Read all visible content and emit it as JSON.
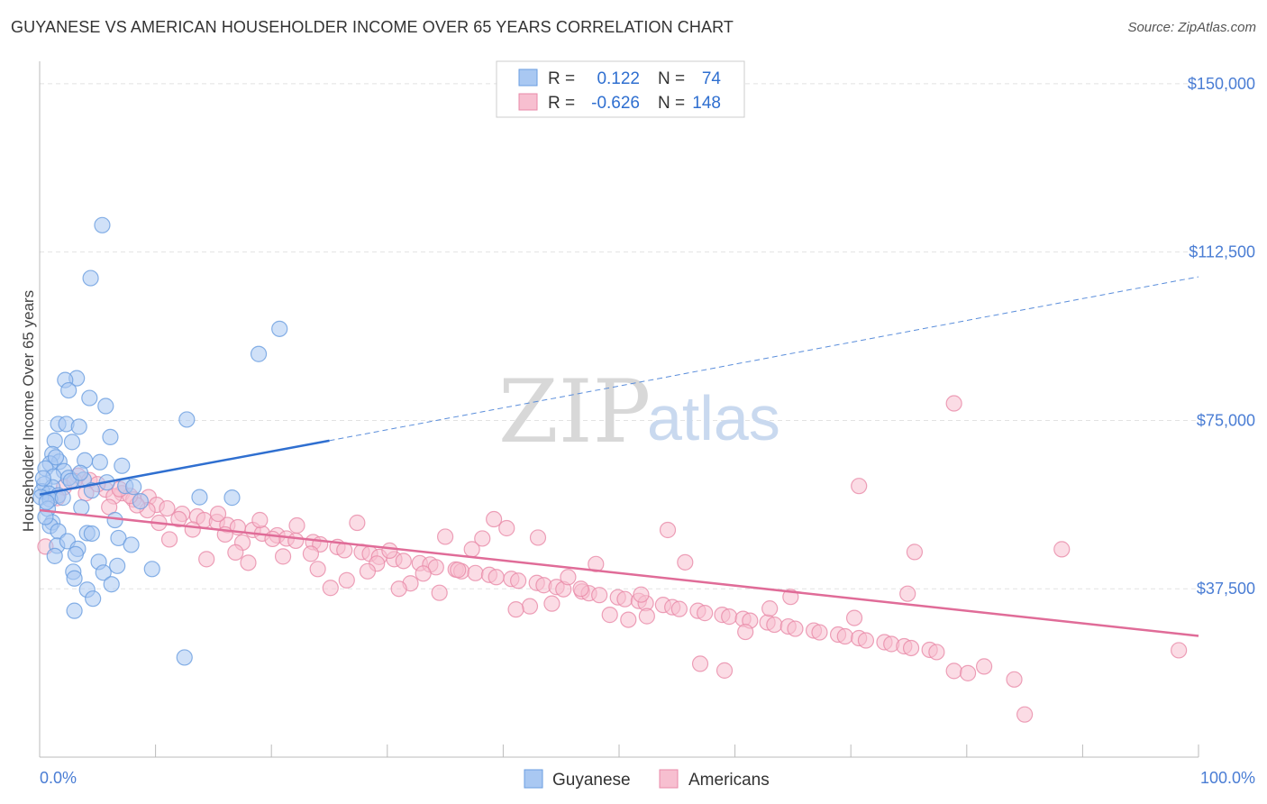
{
  "header": {
    "title": "GUYANESE VS AMERICAN HOUSEHOLDER INCOME OVER 65 YEARS CORRELATION CHART",
    "source": "Source: ZipAtlas.com"
  },
  "watermark": {
    "zip": "ZIP",
    "atlas": "atlas"
  },
  "legend": {
    "rows": [
      {
        "r_label": "R =",
        "r_value": "0.122",
        "n_label": "N =",
        "n_value": "74",
        "color": "#a9c8f2",
        "border": "#6a9ee0"
      },
      {
        "r_label": "R =",
        "r_value": "-0.626",
        "n_label": "N =",
        "n_value": "148",
        "color": "#f7bfd0",
        "border": "#e88aa8"
      }
    ]
  },
  "bottom_legend": [
    {
      "label": "Guyanese",
      "color": "#a9c8f2",
      "border": "#6a9ee0"
    },
    {
      "label": "Americans",
      "color": "#f7bfd0",
      "border": "#e88aa8"
    }
  ],
  "chart_data": {
    "type": "scatter",
    "title": "GUYANESE VS AMERICAN HOUSEHOLDER INCOME OVER 65 YEARS CORRELATION CHART",
    "xlabel": "",
    "ylabel": "Householder Income Over 65 years",
    "xlim": [
      0,
      100
    ],
    "ylim": [
      0,
      155000
    ],
    "x_tick_labels": [
      "0.0%",
      "100.0%"
    ],
    "y_ticks": [
      37500,
      75000,
      112500,
      150000
    ],
    "y_tick_labels": [
      "$37,500",
      "$75,000",
      "$112,500",
      "$150,000"
    ],
    "grid": true,
    "legend_position": "top-center",
    "series": [
      {
        "name": "Guyanese",
        "color": "#6a9ee0",
        "fill": "#a9c8f2",
        "trend": {
          "x": [
            0,
            25
          ],
          "y": [
            58500,
            70500
          ],
          "extended_x": [
            25,
            100
          ],
          "extended_y": [
            70500,
            107000
          ]
        },
        "points": [
          [
            5.4,
            118500
          ],
          [
            4.4,
            106700
          ],
          [
            20.7,
            95400
          ],
          [
            18.9,
            89800
          ],
          [
            3.2,
            84400
          ],
          [
            2.2,
            84000
          ],
          [
            2.5,
            81700
          ],
          [
            4.3,
            80000
          ],
          [
            5.7,
            78200
          ],
          [
            1.6,
            74200
          ],
          [
            2.3,
            74200
          ],
          [
            3.4,
            73600
          ],
          [
            12.7,
            75200
          ],
          [
            6.1,
            71300
          ],
          [
            2.8,
            70200
          ],
          [
            1.3,
            70500
          ],
          [
            1.1,
            67500
          ],
          [
            3.9,
            66100
          ],
          [
            5.2,
            65700
          ],
          [
            1.7,
            65800
          ],
          [
            0.9,
            65400
          ],
          [
            0.5,
            64300
          ],
          [
            2.1,
            63700
          ],
          [
            7.1,
            64900
          ],
          [
            1.2,
            62500
          ],
          [
            2.5,
            62200
          ],
          [
            3.8,
            61800
          ],
          [
            5.8,
            61200
          ],
          [
            7.4,
            60400
          ],
          [
            8.1,
            60200
          ],
          [
            0.4,
            60800
          ],
          [
            1.1,
            60100
          ],
          [
            0.2,
            59200
          ],
          [
            0.8,
            58700
          ],
          [
            1.6,
            58300
          ],
          [
            0.1,
            57900
          ],
          [
            0.9,
            57400
          ],
          [
            4.5,
            59400
          ],
          [
            13.8,
            57900
          ],
          [
            16.6,
            57800
          ],
          [
            0.7,
            55300
          ],
          [
            3.6,
            55600
          ],
          [
            1.1,
            52300
          ],
          [
            0.9,
            51500
          ],
          [
            1.6,
            50300
          ],
          [
            4.1,
            49900
          ],
          [
            4.5,
            49800
          ],
          [
            6.8,
            48800
          ],
          [
            7.9,
            47300
          ],
          [
            1.5,
            47100
          ],
          [
            2.4,
            48100
          ],
          [
            3.3,
            46400
          ],
          [
            1.3,
            44800
          ],
          [
            3.1,
            45200
          ],
          [
            5.1,
            43500
          ],
          [
            6.7,
            42600
          ],
          [
            9.7,
            41900
          ],
          [
            2.9,
            41300
          ],
          [
            5.5,
            41100
          ],
          [
            6.2,
            38500
          ],
          [
            3.0,
            39800
          ],
          [
            4.1,
            37300
          ],
          [
            4.6,
            35300
          ],
          [
            3.0,
            32600
          ],
          [
            12.5,
            22200
          ],
          [
            0.5,
            53500
          ],
          [
            2.0,
            57800
          ],
          [
            0.3,
            62100
          ],
          [
            1.4,
            66800
          ],
          [
            2.7,
            61500
          ],
          [
            3.5,
            63300
          ],
          [
            0.6,
            56800
          ],
          [
            6.5,
            52800
          ],
          [
            8.7,
            57000
          ]
        ]
      },
      {
        "name": "Americans",
        "color": "#e88aa8",
        "fill": "#f7bfd0",
        "trend": {
          "x": [
            0,
            100
          ],
          "y": [
            55000,
            27000
          ]
        },
        "points": [
          [
            78.9,
            78800
          ],
          [
            70.7,
            60400
          ],
          [
            3.3,
            62700
          ],
          [
            4.3,
            61700
          ],
          [
            2.1,
            60100
          ],
          [
            5.7,
            59600
          ],
          [
            7.1,
            58800
          ],
          [
            8.1,
            57400
          ],
          [
            6.4,
            58100
          ],
          [
            9.4,
            57900
          ],
          [
            10.1,
            56200
          ],
          [
            11.0,
            55400
          ],
          [
            12.3,
            54200
          ],
          [
            13.6,
            53600
          ],
          [
            14.2,
            52800
          ],
          [
            15.3,
            52400
          ],
          [
            16.2,
            51700
          ],
          [
            17.1,
            51200
          ],
          [
            18.4,
            50600
          ],
          [
            19.2,
            49800
          ],
          [
            20.5,
            49400
          ],
          [
            21.3,
            48700
          ],
          [
            22.1,
            48200
          ],
          [
            23.6,
            47900
          ],
          [
            24.2,
            47400
          ],
          [
            25.7,
            46800
          ],
          [
            26.3,
            46100
          ],
          [
            27.8,
            45700
          ],
          [
            28.5,
            45300
          ],
          [
            29.3,
            44600
          ],
          [
            30.6,
            44100
          ],
          [
            31.4,
            43700
          ],
          [
            32.8,
            43200
          ],
          [
            33.7,
            42900
          ],
          [
            34.2,
            42300
          ],
          [
            35.9,
            41800
          ],
          [
            36.4,
            41400
          ],
          [
            37.6,
            41000
          ],
          [
            38.8,
            40600
          ],
          [
            39.4,
            40100
          ],
          [
            40.7,
            39700
          ],
          [
            41.3,
            39300
          ],
          [
            42.9,
            38800
          ],
          [
            43.5,
            38300
          ],
          [
            44.6,
            37900
          ],
          [
            45.2,
            37400
          ],
          [
            46.8,
            36900
          ],
          [
            47.4,
            36500
          ],
          [
            48.3,
            36100
          ],
          [
            49.9,
            35600
          ],
          [
            50.5,
            35200
          ],
          [
            51.7,
            34800
          ],
          [
            52.3,
            34300
          ],
          [
            53.8,
            33900
          ],
          [
            54.6,
            33400
          ],
          [
            55.2,
            33000
          ],
          [
            56.8,
            32600
          ],
          [
            57.4,
            32100
          ],
          [
            58.9,
            31700
          ],
          [
            59.5,
            31300
          ],
          [
            60.7,
            30800
          ],
          [
            61.3,
            30400
          ],
          [
            62.8,
            30000
          ],
          [
            63.4,
            29500
          ],
          [
            64.6,
            29100
          ],
          [
            65.2,
            28600
          ],
          [
            66.8,
            28200
          ],
          [
            67.3,
            27800
          ],
          [
            68.9,
            27300
          ],
          [
            69.5,
            26900
          ],
          [
            70.7,
            26500
          ],
          [
            71.3,
            26000
          ],
          [
            72.9,
            25600
          ],
          [
            73.5,
            25200
          ],
          [
            74.6,
            24700
          ],
          [
            75.2,
            24300
          ],
          [
            76.8,
            23900
          ],
          [
            77.4,
            23400
          ],
          [
            78.9,
            19200
          ],
          [
            80.1,
            18700
          ],
          [
            81.5,
            20200
          ],
          [
            84.1,
            17300
          ],
          [
            85.0,
            9500
          ],
          [
            98.3,
            23800
          ],
          [
            88.2,
            46300
          ],
          [
            74.9,
            36400
          ],
          [
            75.5,
            45700
          ],
          [
            70.3,
            31000
          ],
          [
            64.8,
            35700
          ],
          [
            63.0,
            33100
          ],
          [
            60.9,
            27900
          ],
          [
            59.1,
            19300
          ],
          [
            57.0,
            20800
          ],
          [
            55.7,
            43400
          ],
          [
            54.2,
            50600
          ],
          [
            52.4,
            31400
          ],
          [
            51.9,
            36200
          ],
          [
            50.8,
            30600
          ],
          [
            49.2,
            31700
          ],
          [
            48.0,
            43000
          ],
          [
            46.7,
            37500
          ],
          [
            45.6,
            40100
          ],
          [
            44.2,
            34200
          ],
          [
            43.0,
            48900
          ],
          [
            42.3,
            33600
          ],
          [
            41.1,
            32900
          ],
          [
            40.3,
            51000
          ],
          [
            39.2,
            53000
          ],
          [
            38.2,
            48700
          ],
          [
            37.3,
            46300
          ],
          [
            36.1,
            41700
          ],
          [
            35.0,
            49100
          ],
          [
            34.5,
            36600
          ],
          [
            33.1,
            40900
          ],
          [
            32.0,
            38700
          ],
          [
            31.0,
            37500
          ],
          [
            30.2,
            46000
          ],
          [
            29.1,
            43100
          ],
          [
            28.3,
            41400
          ],
          [
            27.4,
            52200
          ],
          [
            26.5,
            39400
          ],
          [
            25.1,
            37700
          ],
          [
            24.0,
            41900
          ],
          [
            23.4,
            45300
          ],
          [
            22.2,
            51600
          ],
          [
            21.0,
            44700
          ],
          [
            20.1,
            48600
          ],
          [
            19.0,
            52800
          ],
          [
            18.0,
            43300
          ],
          [
            17.5,
            47800
          ],
          [
            16.9,
            45600
          ],
          [
            16.0,
            49600
          ],
          [
            15.4,
            54200
          ],
          [
            14.4,
            44100
          ],
          [
            13.2,
            50700
          ],
          [
            12.0,
            53000
          ],
          [
            11.2,
            48500
          ],
          [
            10.3,
            52200
          ],
          [
            9.3,
            55000
          ],
          [
            8.4,
            56100
          ],
          [
            7.8,
            58200
          ],
          [
            6.9,
            59700
          ],
          [
            6.0,
            55700
          ],
          [
            5.0,
            60800
          ],
          [
            4.0,
            58800
          ],
          [
            3.0,
            61500
          ],
          [
            1.5,
            57700
          ],
          [
            0.5,
            46900
          ]
        ]
      }
    ]
  }
}
